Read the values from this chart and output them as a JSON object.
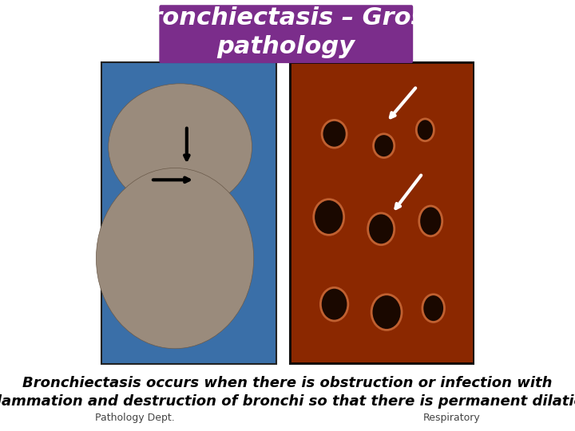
{
  "bg_color": "#ffffff",
  "title_text_line1": "Bronchiectasis – Gross",
  "title_text_line2": "pathology",
  "title_box_color": "#7B2D8B",
  "title_text_color": "#ffffff",
  "title_font_size": 22,
  "title_font_style": "italic",
  "title_font_weight": "bold",
  "body_text": "Bronchiectasis occurs when there is obstruction or infection with\ninflammation and destruction of bronchi so that there is permanent dilation.",
  "body_font_size": 13,
  "body_font_weight": "bold",
  "body_font_style": "italic",
  "footer_left": "Pathology Dept.",
  "footer_right": "Respiratory",
  "footer_font_size": 9,
  "left_image_placeholder": true,
  "right_image_placeholder": true,
  "image_bg_left": "#2255AA",
  "image_bg_right": "#000000",
  "slide_bg": "#ffffff"
}
